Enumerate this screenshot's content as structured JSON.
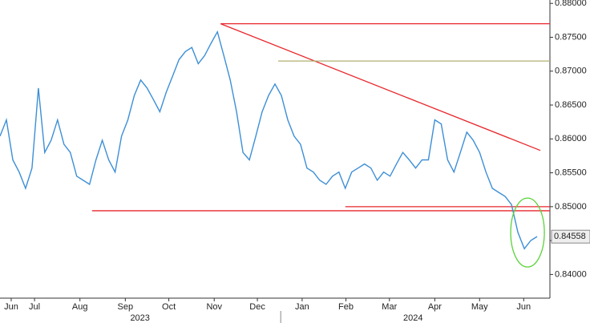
{
  "chart_data": {
    "type": "line",
    "series": [
      {
        "color": "#3d8fd6",
        "values": [
          0.8604,
          0.8628,
          0.8569,
          0.8551,
          0.8527,
          0.8557,
          0.8675,
          0.858,
          0.8598,
          0.8628,
          0.8592,
          0.858,
          0.8545,
          0.8539,
          0.8533,
          0.8569,
          0.8598,
          0.8569,
          0.8551,
          0.8604,
          0.8628,
          0.8664,
          0.8687,
          0.8675,
          0.8658,
          0.864,
          0.8669,
          0.8693,
          0.8717,
          0.8729,
          0.8735,
          0.8711,
          0.8723,
          0.8741,
          0.8758,
          0.8723,
          0.8687,
          0.864,
          0.858,
          0.8569,
          0.8604,
          0.864,
          0.8664,
          0.8681,
          0.8664,
          0.8628,
          0.8604,
          0.8592,
          0.8557,
          0.8551,
          0.8539,
          0.8533,
          0.8545,
          0.8551,
          0.8527,
          0.8551,
          0.8557,
          0.8563,
          0.8557,
          0.8539,
          0.8551,
          0.8545,
          0.8563,
          0.858,
          0.8569,
          0.8557,
          0.8569,
          0.8569,
          0.8628,
          0.8622,
          0.8569,
          0.8551,
          0.858,
          0.861,
          0.8598,
          0.858,
          0.8551,
          0.8527,
          0.8521,
          0.8515,
          0.8503,
          0.8462,
          0.8438,
          0.845,
          0.8456
        ]
      }
    ],
    "xlim": [
      0,
      86
    ],
    "xticks": [
      {
        "value": 1.75,
        "label": "Jun"
      },
      {
        "value": 5.4,
        "label": "Jul"
      },
      {
        "value": 12.5,
        "label": "Aug"
      },
      {
        "value": 19.6,
        "label": "Sep"
      },
      {
        "value": 26.4,
        "label": "Oct"
      },
      {
        "value": 33.5,
        "label": "Nov"
      },
      {
        "value": 40.25,
        "label": "Dec"
      },
      {
        "value": 47.25,
        "label": "Jan"
      },
      {
        "value": 54.1,
        "label": "Feb"
      },
      {
        "value": 60.9,
        "label": "Mar"
      },
      {
        "value": 68,
        "label": "Apr"
      },
      {
        "value": 75,
        "label": "May"
      },
      {
        "value": 81.9,
        "label": "Jun"
      }
    ],
    "years": [
      {
        "value": 21.9,
        "label": "2023"
      },
      {
        "value": 64.6,
        "label": "2024"
      }
    ],
    "year_divider": 43.9,
    "ylim": [
      0.8365,
      0.8805
    ],
    "yticks": [
      {
        "value": 0.84,
        "label": "0.84000"
      },
      {
        "value": 0.845,
        "label": "0.84500"
      },
      {
        "value": 0.85,
        "label": "0.85000"
      },
      {
        "value": 0.855,
        "label": "0.85500"
      },
      {
        "value": 0.86,
        "label": "0.86000"
      },
      {
        "value": 0.865,
        "label": "0.86500"
      },
      {
        "value": 0.87,
        "label": "0.87000"
      },
      {
        "value": 0.875,
        "label": "0.87500"
      },
      {
        "value": 0.88,
        "label": "0.88000"
      }
    ],
    "last_price": 0.84558,
    "trend_lines": [
      {
        "color": "#e8262b",
        "x": [
          34.5,
          86
        ],
        "y": [
          0.877,
          0.877
        ]
      },
      {
        "color": "#e8262b",
        "x": [
          34.5,
          84.5
        ],
        "y": [
          0.877,
          0.8583
        ]
      },
      {
        "color": "#b0b070",
        "x": [
          43.5,
          86
        ],
        "y": [
          0.8715,
          0.8715
        ]
      },
      {
        "color": "#e8262b",
        "x": [
          14.4,
          86
        ],
        "y": [
          0.8494,
          0.8494
        ]
      },
      {
        "color": "#e8262b",
        "x": [
          54,
          86
        ],
        "y": [
          0.85,
          0.85
        ]
      }
    ]
  }
}
